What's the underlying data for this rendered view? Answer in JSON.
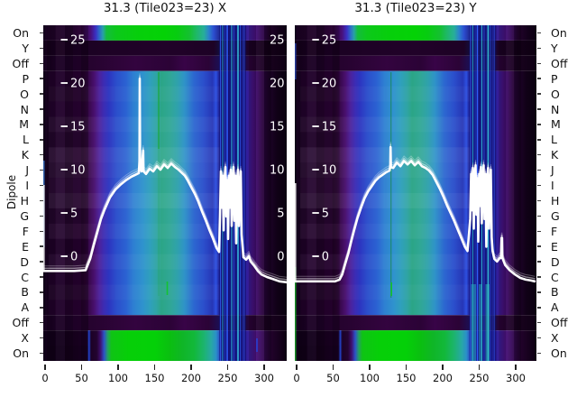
{
  "figure": {
    "background": "#ffffff"
  },
  "chart_data": {
    "type": "heatmap+line",
    "description": "Two-panel dipole power heatmap (channels vs dipole state) with overlaid white power-vs-channel curves",
    "ylabel": "Dipole",
    "row_labels": [
      "On",
      "Y",
      "Off",
      "P",
      "O",
      "N",
      "M",
      "L",
      "K",
      "J",
      "I",
      "H",
      "G",
      "F",
      "E",
      "D",
      "C",
      "B",
      "A",
      "Off",
      "X",
      "On"
    ],
    "x_ticks": [
      0,
      50,
      100,
      150,
      200,
      250,
      300
    ],
    "y_ticks": [
      25,
      20,
      15,
      10,
      5,
      0
    ],
    "x_range": [
      -2.5,
      331
    ],
    "colors": {
      "curve": "#ffffff",
      "tick_text_inner": "#ffffff",
      "axis_text": "#111111",
      "colormap": "black-purple-blue-cyan-green"
    },
    "legend": "none",
    "grid": "off",
    "panels": [
      {
        "title": "31.3 (Tile023=23) X",
        "series_units": [
          "channel",
          "dB"
        ],
        "series": [
          [
            -2.5,
            -1.7
          ],
          [
            20,
            -1.7
          ],
          [
            40,
            -1.7
          ],
          [
            55.6,
            -1.6
          ],
          [
            61.7,
            -0.3
          ],
          [
            66.7,
            1.3
          ],
          [
            71.6,
            2.8
          ],
          [
            76.5,
            4.3
          ],
          [
            81.5,
            5.4
          ],
          [
            88.9,
            6.8
          ],
          [
            96.3,
            7.7
          ],
          [
            103.7,
            8.3
          ],
          [
            111.1,
            8.8
          ],
          [
            118.5,
            9.2
          ],
          [
            123.5,
            9.4
          ],
          [
            128.4,
            9.6
          ],
          [
            129.3,
            11
          ],
          [
            129.6,
            20.5
          ],
          [
            130.1,
            11
          ],
          [
            132,
            9.8
          ],
          [
            134.3,
            12.2
          ],
          [
            134.8,
            9.8
          ],
          [
            138.3,
            9.5
          ],
          [
            143.2,
            10.1
          ],
          [
            148.1,
            9.8
          ],
          [
            153.1,
            10.4
          ],
          [
            158,
            10
          ],
          [
            163,
            10.6
          ],
          [
            167.9,
            10.2
          ],
          [
            172.8,
            10.7
          ],
          [
            177.8,
            10.3
          ],
          [
            182.7,
            10
          ],
          [
            187.7,
            9.6
          ],
          [
            191.4,
            9.3
          ],
          [
            195.1,
            8.8
          ],
          [
            200,
            8
          ],
          [
            205,
            7.2
          ],
          [
            209.9,
            6.3
          ],
          [
            214.8,
            5.2
          ],
          [
            219.8,
            4.2
          ],
          [
            224.7,
            3.1
          ],
          [
            229.6,
            2.1
          ],
          [
            234.6,
            1
          ],
          [
            238.3,
            0.5
          ],
          [
            239.5,
            4.6
          ],
          [
            240.7,
            9.8
          ],
          [
            242,
            5.6
          ],
          [
            243.2,
            9.3
          ],
          [
            244.4,
            3
          ],
          [
            245.7,
            8.8
          ],
          [
            246.9,
            10.3
          ],
          [
            248.1,
            4.6
          ],
          [
            249.4,
            8.8
          ],
          [
            250.6,
            2
          ],
          [
            251.9,
            9.3
          ],
          [
            253.1,
            5.6
          ],
          [
            254.3,
            10
          ],
          [
            255.6,
            3.5
          ],
          [
            256.8,
            8.2
          ],
          [
            258,
            10.3
          ],
          [
            259.3,
            4.1
          ],
          [
            260.5,
            9.3
          ],
          [
            261.7,
            1.5
          ],
          [
            263,
            8.8
          ],
          [
            264.2,
            10
          ],
          [
            265.4,
            3.5
          ],
          [
            266.7,
            7.7
          ],
          [
            267.9,
            9.8
          ],
          [
            269.1,
            2.5
          ],
          [
            271.6,
            -0.1
          ],
          [
            275.3,
            -0.4
          ],
          [
            279,
            0
          ],
          [
            281.5,
            -0.6
          ],
          [
            286.4,
            -1.1
          ],
          [
            291.4,
            -1.7
          ],
          [
            296.3,
            -2.1
          ],
          [
            303.7,
            -2.4
          ],
          [
            311.1,
            -2.6
          ],
          [
            321,
            -2.9
          ],
          [
            330.9,
            -3
          ]
        ]
      },
      {
        "title": "31.3 (Tile023=23) Y",
        "series_units": [
          "channel",
          "dB"
        ],
        "series": [
          [
            -2.5,
            -2.9
          ],
          [
            20,
            -2.9
          ],
          [
            40,
            -2.9
          ],
          [
            53.1,
            -2.9
          ],
          [
            59.3,
            -2.7
          ],
          [
            63,
            -2.1
          ],
          [
            66.7,
            -1
          ],
          [
            71.6,
            0.4
          ],
          [
            75.3,
            1.7
          ],
          [
            79,
            2.9
          ],
          [
            84,
            4.4
          ],
          [
            88.9,
            5.6
          ],
          [
            93.8,
            6.7
          ],
          [
            98.8,
            7.5
          ],
          [
            103.7,
            8.1
          ],
          [
            108.6,
            8.7
          ],
          [
            113.6,
            9.1
          ],
          [
            118.5,
            9.4
          ],
          [
            123.5,
            9.7
          ],
          [
            128.4,
            9.9
          ],
          [
            129.2,
            10.5
          ],
          [
            129.6,
            12.6
          ],
          [
            130.1,
            10.3
          ],
          [
            133.3,
            10.2
          ],
          [
            138.3,
            10.8
          ],
          [
            143.2,
            10.4
          ],
          [
            148.1,
            11
          ],
          [
            153.1,
            10.6
          ],
          [
            158,
            11
          ],
          [
            163,
            10.5
          ],
          [
            167.9,
            10.9
          ],
          [
            172.8,
            10.4
          ],
          [
            177.8,
            10.2
          ],
          [
            182.7,
            9.9
          ],
          [
            187.7,
            9.4
          ],
          [
            192.6,
            8.6
          ],
          [
            197.5,
            7.8
          ],
          [
            202.5,
            6.9
          ],
          [
            207.4,
            5.9
          ],
          [
            212.3,
            5
          ],
          [
            217.3,
            4.1
          ],
          [
            222.2,
            3.1
          ],
          [
            227.2,
            2.1
          ],
          [
            232.1,
            1.1
          ],
          [
            235.8,
            0.6
          ],
          [
            239.5,
            4.3
          ],
          [
            240.7,
            9.5
          ],
          [
            242,
            5.3
          ],
          [
            243.2,
            10.2
          ],
          [
            244.4,
            3.2
          ],
          [
            245.7,
            9
          ],
          [
            246.9,
            10.5
          ],
          [
            248.1,
            4.8
          ],
          [
            249.4,
            9
          ],
          [
            250.6,
            1.7
          ],
          [
            251.9,
            9.5
          ],
          [
            253.1,
            5.8
          ],
          [
            254.3,
            10.3
          ],
          [
            255.6,
            3.8
          ],
          [
            256.8,
            8.4
          ],
          [
            258,
            10.5
          ],
          [
            259.3,
            4.3
          ],
          [
            260.5,
            9.5
          ],
          [
            261.7,
            1.1
          ],
          [
            263,
            9
          ],
          [
            264.2,
            10.2
          ],
          [
            265.4,
            3.2
          ],
          [
            266.7,
            7.9
          ],
          [
            267.9,
            10
          ],
          [
            269.1,
            2.2
          ],
          [
            270.4,
            0.6
          ],
          [
            272.8,
            -0.3
          ],
          [
            276.5,
            -0.6
          ],
          [
            280.2,
            -0.2
          ],
          [
            282,
            -0.2
          ],
          [
            282.7,
            2.1
          ],
          [
            283.4,
            2.1
          ],
          [
            283.9,
            -0.2
          ],
          [
            287.7,
            -1
          ],
          [
            293.8,
            -1.6
          ],
          [
            301.2,
            -2.1
          ],
          [
            308.6,
            -2.5
          ],
          [
            316,
            -2.7
          ],
          [
            323.5,
            -2.8
          ],
          [
            328.4,
            -2.9
          ]
        ]
      }
    ]
  }
}
